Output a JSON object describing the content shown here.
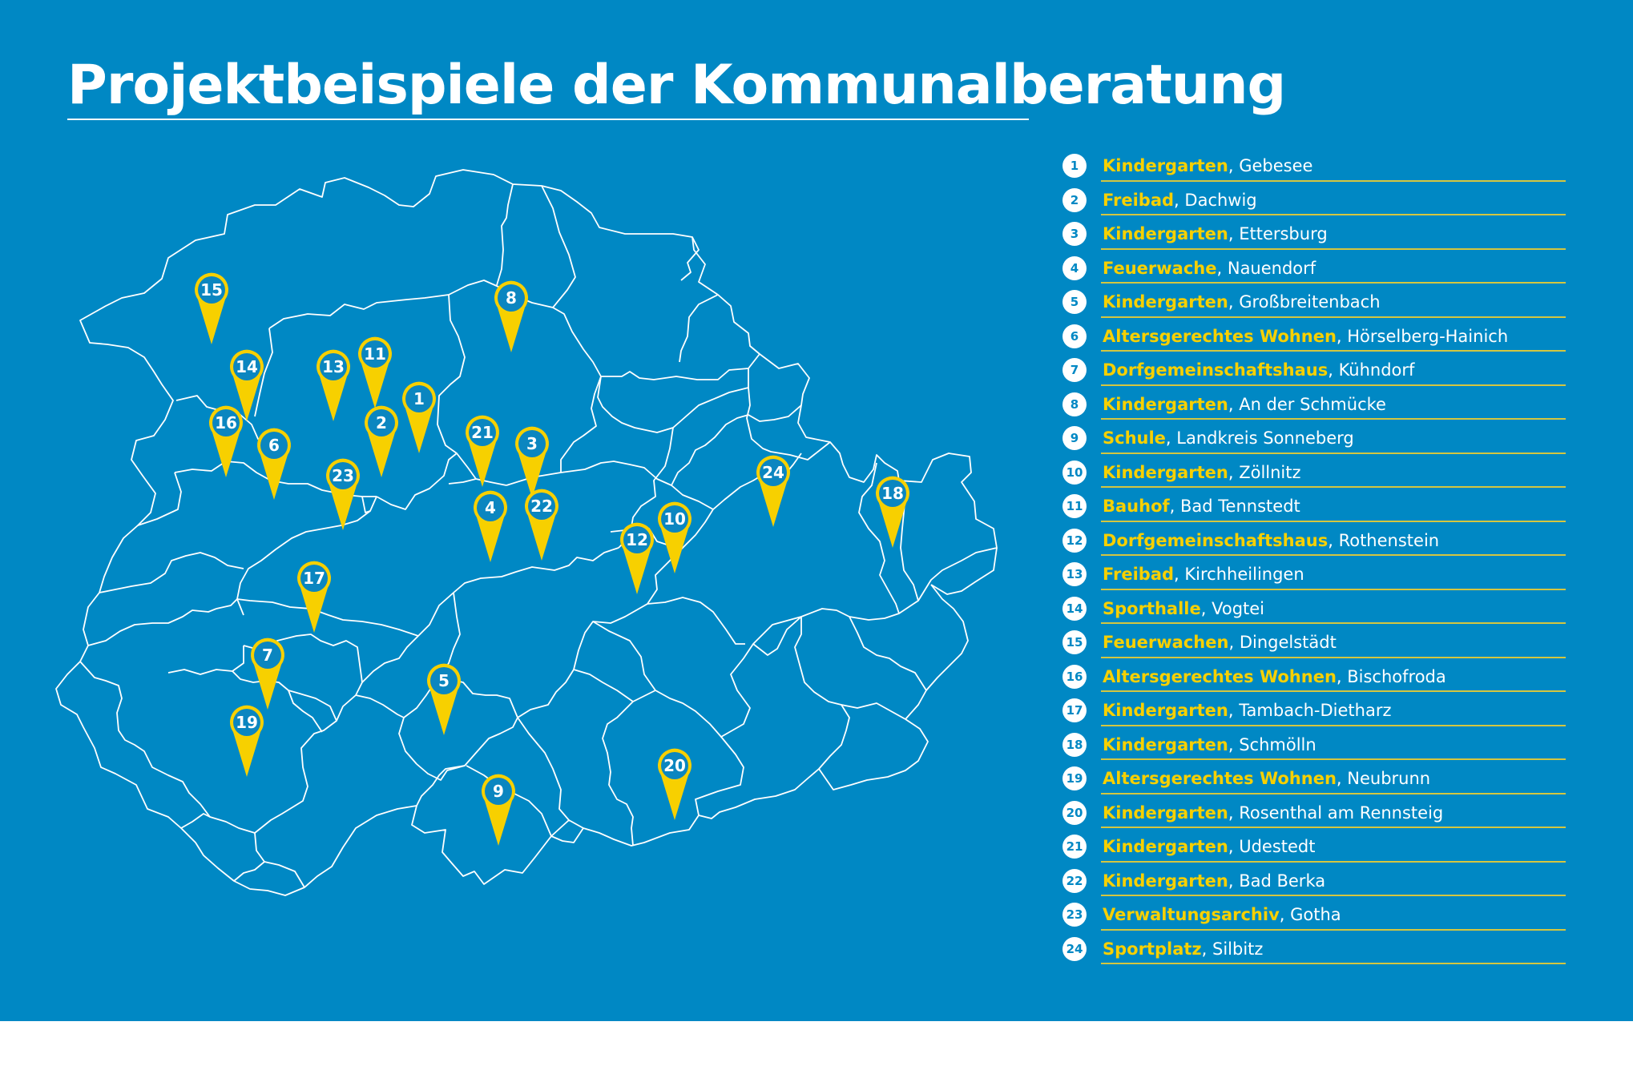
{
  "title": "Projektbeispiele der Kommunalberatung",
  "colors": {
    "background": "#0088c4",
    "marker": "#f7d000",
    "border": "#ffffff",
    "label_type": "#f7d000",
    "rule": "#d4c640"
  },
  "markers": [
    "1",
    "2",
    "3",
    "4",
    "5",
    "6",
    "7",
    "8",
    "9",
    "10",
    "11",
    "12",
    "13",
    "14",
    "15",
    "16",
    "17",
    "18",
    "19",
    "20",
    "21",
    "22",
    "23",
    "24"
  ],
  "legend": [
    {
      "num": "1",
      "type": "Kindergarten",
      "sep": ", ",
      "place": "Gebesee"
    },
    {
      "num": "2",
      "type": "Freibad",
      "sep": ", ",
      "place": "Dachwig"
    },
    {
      "num": "3",
      "type": "Kindergarten",
      "sep": ", ",
      "place": "Ettersburg"
    },
    {
      "num": "4",
      "type": "Feuerwache",
      "sep": ", ",
      "place": "Nauendorf"
    },
    {
      "num": "5",
      "type": "Kindergarten",
      "sep": ", ",
      "place": "Großbreitenbach"
    },
    {
      "num": "6",
      "type": "Altersgerechtes Wohnen",
      "sep": ", ",
      "place": "Hörselberg-Hainich"
    },
    {
      "num": "7",
      "type": "Dorfgemeinschaftshaus",
      "sep": ", ",
      "place": "Kühndorf"
    },
    {
      "num": "8",
      "type": "Kindergarten",
      "sep": ", ",
      "place": "An der Schmücke"
    },
    {
      "num": "9",
      "type": "Schule",
      "sep": ", ",
      "place": "Landkreis Sonneberg"
    },
    {
      "num": "10",
      "type": "Kindergarten",
      "sep": ", ",
      "place": "Zöllnitz"
    },
    {
      "num": "11",
      "type": "Bauhof",
      "sep": ", ",
      "place": "Bad Tennstedt"
    },
    {
      "num": "12",
      "type": "Dorfgemeinschaftshaus",
      "sep": ", ",
      "place": "Rothenstein"
    },
    {
      "num": "13",
      "type": "Freibad",
      "sep": ", ",
      "place": "Kirchheilingen"
    },
    {
      "num": "14",
      "type": "Sporthalle",
      "sep": ", ",
      "place": "Vogtei"
    },
    {
      "num": "15",
      "type": "Feuerwachen",
      "sep": ", ",
      "place": "Dingelstädt"
    },
    {
      "num": "16",
      "type": "Altersgerechtes Wohnen",
      "sep": ", ",
      "place": "Bischofroda"
    },
    {
      "num": "17",
      "type": "Kindergarten",
      "sep": ", ",
      "place": "Tambach-Dietharz"
    },
    {
      "num": "18",
      "type": "Kindergarten",
      "sep": ", ",
      "place": "Schmölln"
    },
    {
      "num": "19",
      "type": "Altersgerechtes Wohnen",
      "sep": ", ",
      "place": "Neubrunn"
    },
    {
      "num": "20",
      "type": "Kindergarten",
      "sep": ", ",
      "place": "Rosenthal am Rennsteig"
    },
    {
      "num": "21",
      "type": "Kindergarten",
      "sep": ", ",
      "place": "Udestedt"
    },
    {
      "num": "22",
      "type": "Kindergarten",
      "sep": ", ",
      "place": "Bad Berka"
    },
    {
      "num": "23",
      "type": "Verwaltungsarchiv",
      "sep": ", ",
      "place": "Gotha"
    },
    {
      "num": "24",
      "type": "Sportplatz",
      "sep": ", ",
      "place": "Silbitz"
    }
  ]
}
